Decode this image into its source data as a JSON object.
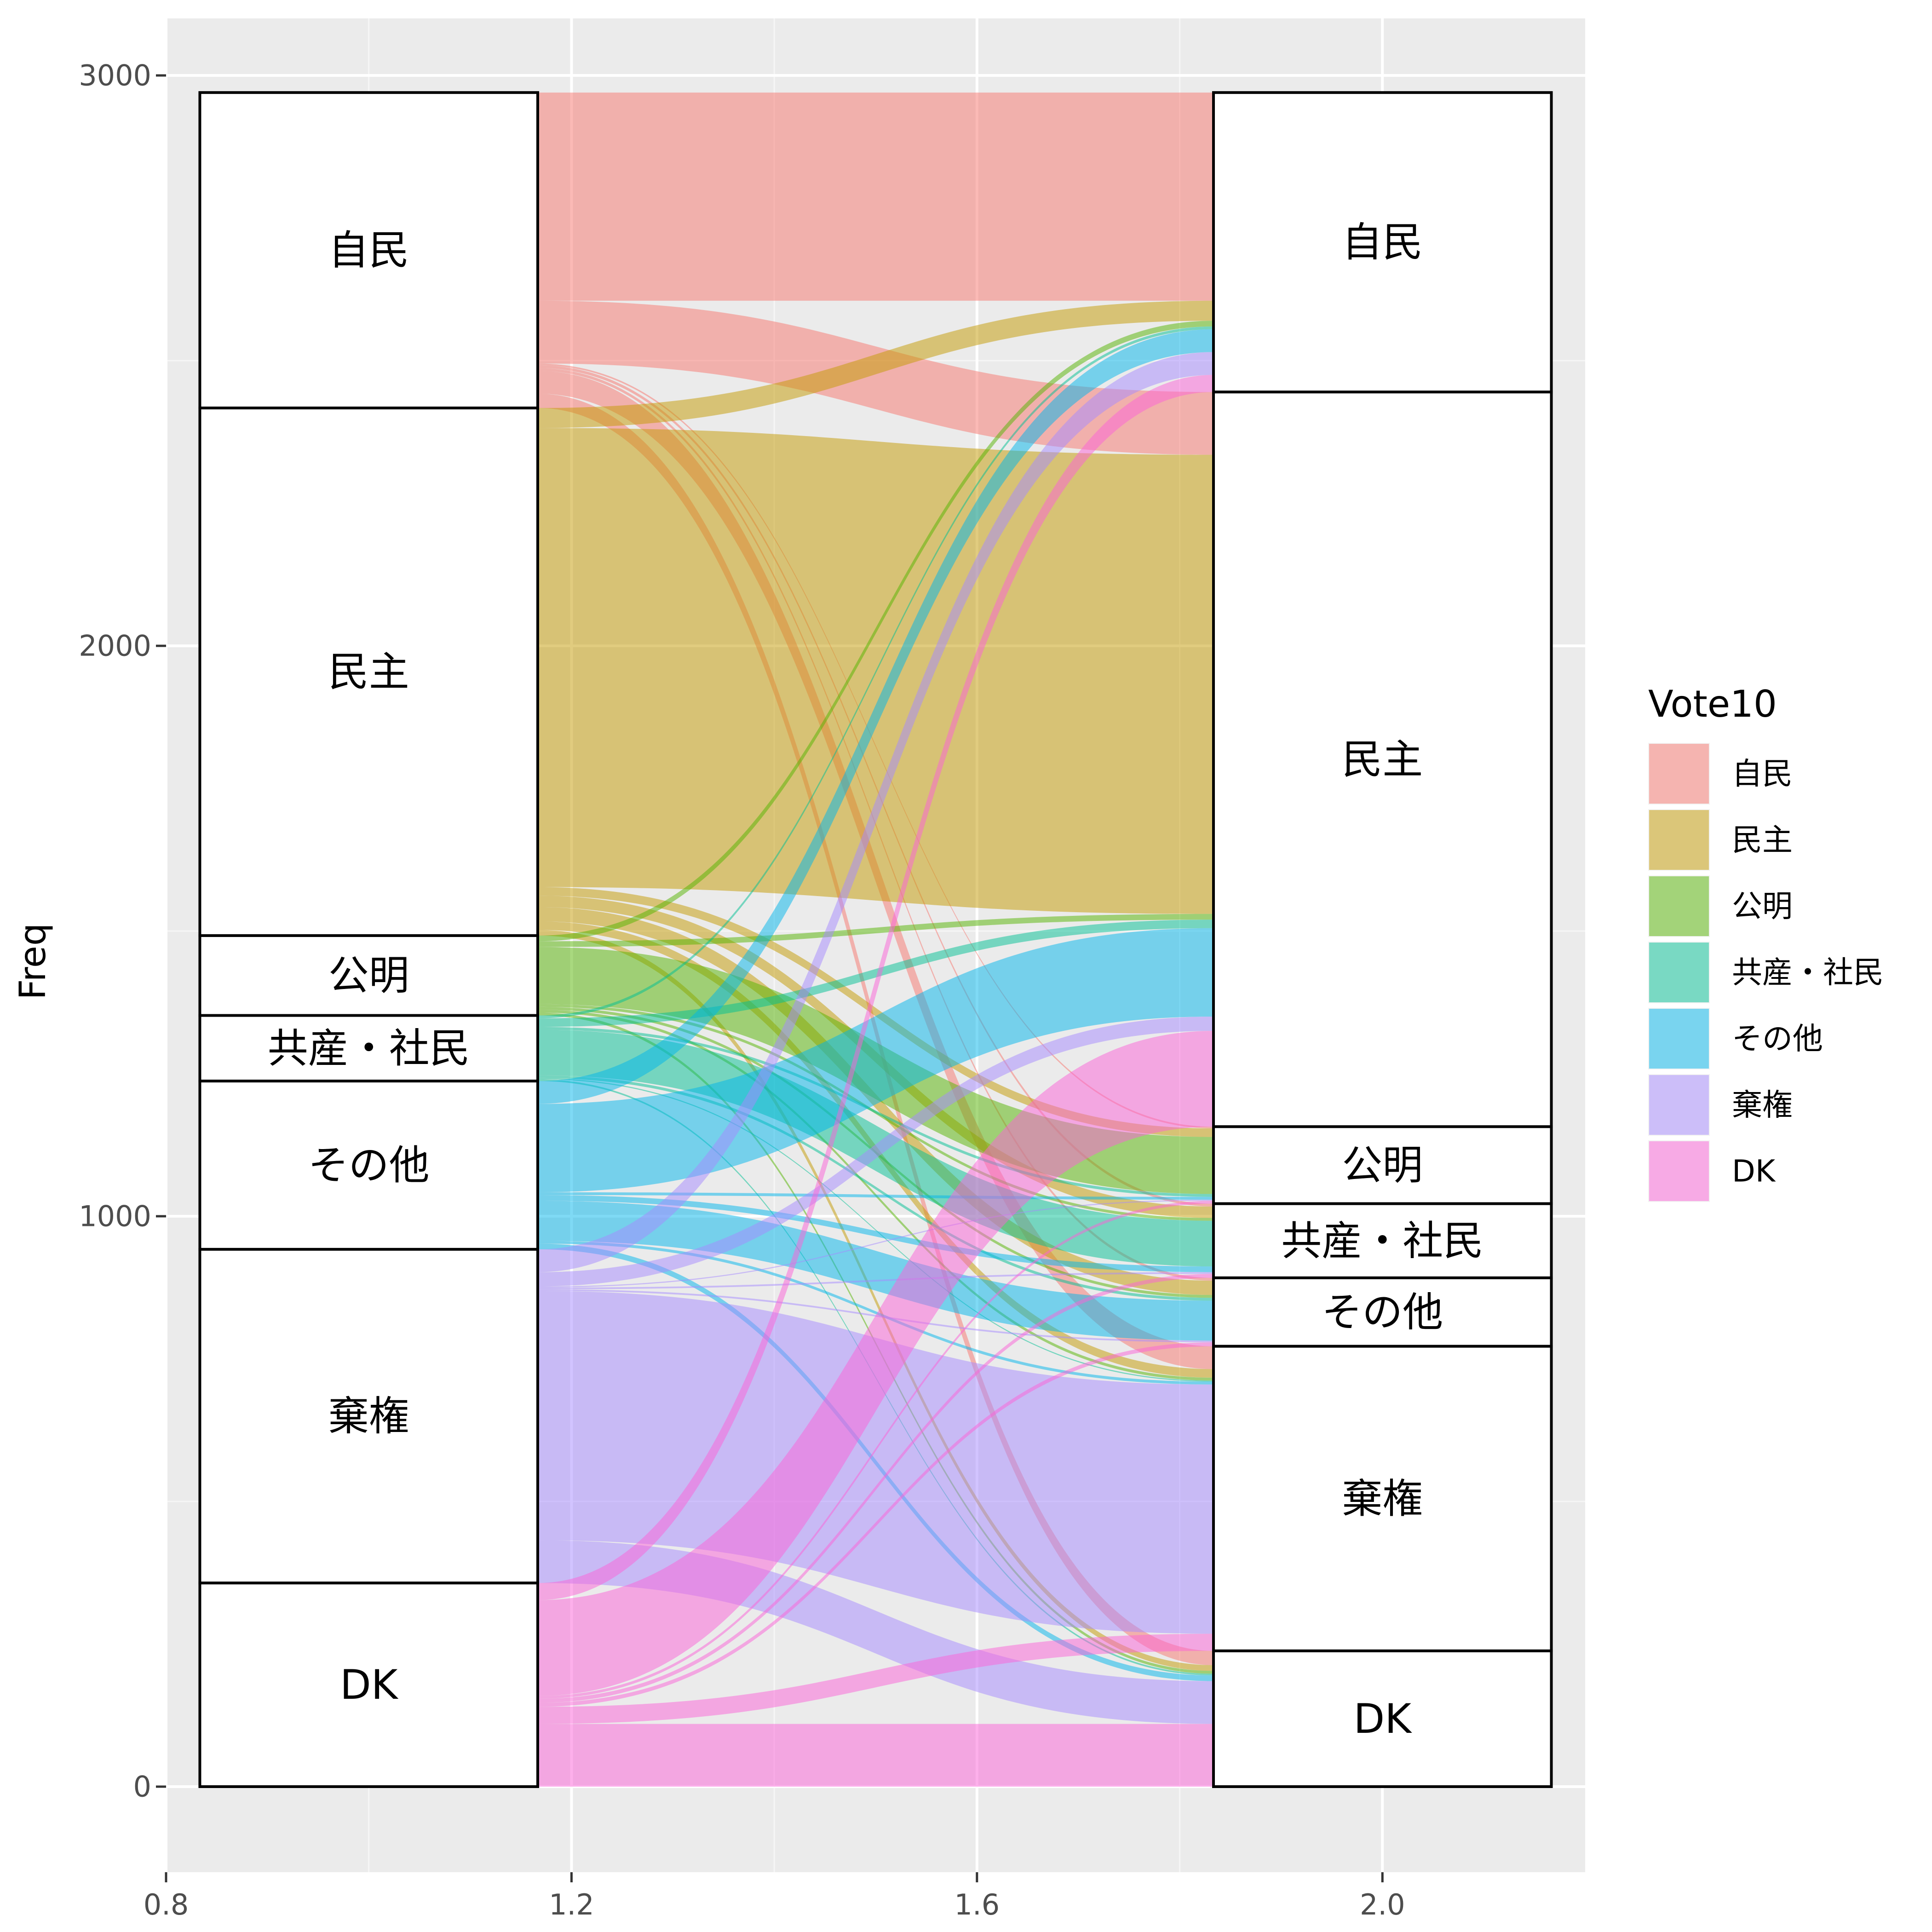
{
  "chart_data": {
    "type": "alluvial",
    "ylabel": "Freq",
    "xlabel": "",
    "xlim": [
      0.8,
      2.2
    ],
    "ylim": [
      -150,
      3100
    ],
    "x_ticks": [
      {
        "value": 0.8,
        "label": "0.8"
      },
      {
        "value": 1.2,
        "label": "1.2"
      },
      {
        "value": 1.6,
        "label": "1.6"
      },
      {
        "value": 2.0,
        "label": "2.0"
      }
    ],
    "y_ticks": [
      {
        "value": 0,
        "label": "0"
      },
      {
        "value": 1000,
        "label": "1000"
      },
      {
        "value": 2000,
        "label": "2000"
      },
      {
        "value": 3000,
        "label": "3000"
      }
    ],
    "legend": {
      "title": "Vote10",
      "position": "right",
      "entries": [
        "自民",
        "民主",
        "公明",
        "共産・社民",
        "その他",
        "棄権",
        "DK"
      ]
    },
    "colors": {
      "自民": "#F8766D",
      "民主": "#C49A00",
      "公明": "#53B400",
      "共産・社民": "#00C094",
      "その他": "#00B6EB",
      "棄権": "#A58AFF",
      "DK": "#FB61D7"
    },
    "axis1_categories": [
      "自民",
      "民主",
      "公明",
      "共産・社民",
      "その他",
      "棄権",
      "DK"
    ],
    "axis2_categories": [
      "自民",
      "民主",
      "公明",
      "共産・社民",
      "その他",
      "棄権",
      "DK"
    ],
    "flows": [
      {
        "from": "自民",
        "to": "自民",
        "value": 365
      },
      {
        "from": "自民",
        "to": "民主",
        "value": 110
      },
      {
        "from": "自民",
        "to": "公明",
        "value": 3
      },
      {
        "from": "自民",
        "to": "共産・社民",
        "value": 5
      },
      {
        "from": "自民",
        "to": "その他",
        "value": 5
      },
      {
        "from": "自民",
        "to": "棄権",
        "value": 40
      },
      {
        "from": "自民",
        "to": "DK",
        "value": 25
      },
      {
        "from": "民主",
        "to": "自民",
        "value": 35
      },
      {
        "from": "民主",
        "to": "民主",
        "value": 805
      },
      {
        "from": "民主",
        "to": "公明",
        "value": 15
      },
      {
        "from": "民主",
        "to": "共産・社民",
        "value": 20
      },
      {
        "from": "民主",
        "to": "その他",
        "value": 25
      },
      {
        "from": "民主",
        "to": "棄権",
        "value": 15
      },
      {
        "from": "民主",
        "to": "DK",
        "value": 10
      },
      {
        "from": "公明",
        "to": "自民",
        "value": 10
      },
      {
        "from": "公明",
        "to": "民主",
        "value": 10
      },
      {
        "from": "公明",
        "to": "公明",
        "value": 100
      },
      {
        "from": "公明",
        "to": "共産・社民",
        "value": 5
      },
      {
        "from": "公明",
        "to": "その他",
        "value": 5
      },
      {
        "from": "公明",
        "to": "棄権",
        "value": 5
      },
      {
        "from": "公明",
        "to": "DK",
        "value": 5
      },
      {
        "from": "共産・社民",
        "to": "自民",
        "value": 5
      },
      {
        "from": "共産・社民",
        "to": "民主",
        "value": 15
      },
      {
        "from": "共産・社民",
        "to": "公明",
        "value": 5
      },
      {
        "from": "共産・社民",
        "to": "共産・社民",
        "value": 80
      },
      {
        "from": "共産・社民",
        "to": "その他",
        "value": 5
      },
      {
        "from": "共産・社民",
        "to": "棄権",
        "value": 2
      },
      {
        "from": "共産・社民",
        "to": "DK",
        "value": 3
      },
      {
        "from": "その他",
        "to": "自民",
        "value": 40
      },
      {
        "from": "その他",
        "to": "民主",
        "value": 155
      },
      {
        "from": "その他",
        "to": "公明",
        "value": 5
      },
      {
        "from": "その他",
        "to": "共産・社民",
        "value": 10
      },
      {
        "from": "その他",
        "to": "その他",
        "value": 70
      },
      {
        "from": "その他",
        "to": "棄権",
        "value": 5
      },
      {
        "from": "その他",
        "to": "DK",
        "value": 10
      },
      {
        "from": "棄権",
        "to": "自民",
        "value": 40
      },
      {
        "from": "棄権",
        "to": "民主",
        "value": 25
      },
      {
        "from": "棄権",
        "to": "公明",
        "value": 2
      },
      {
        "from": "棄権",
        "to": "共産・社民",
        "value": 3
      },
      {
        "from": "棄権",
        "to": "その他",
        "value": 3
      },
      {
        "from": "棄権",
        "to": "棄権",
        "value": 437
      },
      {
        "from": "棄権",
        "to": "DK",
        "value": 75
      },
      {
        "from": "DK",
        "to": "自民",
        "value": 30
      },
      {
        "from": "DK",
        "to": "民主",
        "value": 168
      },
      {
        "from": "DK",
        "to": "公明",
        "value": 5
      },
      {
        "from": "DK",
        "to": "共産・社民",
        "value": 7
      },
      {
        "from": "DK",
        "to": "その他",
        "value": 7
      },
      {
        "from": "DK",
        "to": "棄権",
        "value": 30
      },
      {
        "from": "DK",
        "to": "DK",
        "value": 110
      }
    ]
  }
}
